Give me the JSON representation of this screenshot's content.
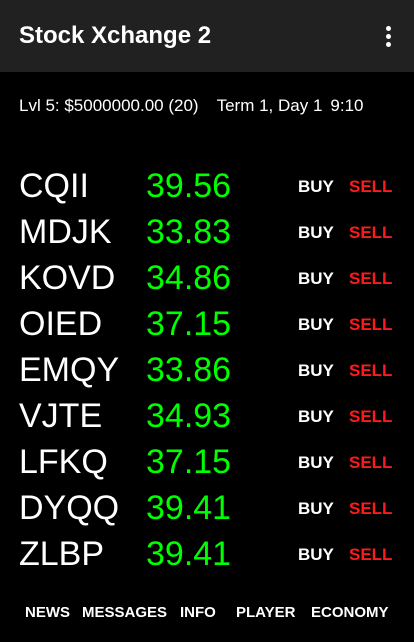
{
  "app_bar": {
    "title": "Stock Xchange 2",
    "menu_icon": "overflow-menu-icon"
  },
  "status": {
    "level_cash": "Lvl 5: $5000000.00 (20)",
    "term_day": "Term 1, Day 1",
    "time": "9:10"
  },
  "colors": {
    "app_bar_bg": "#212121",
    "background": "#000000",
    "price": "#00ff00",
    "sell": "#ff1a1a",
    "text": "#ffffff"
  },
  "stocks": [
    {
      "ticker": "CQII",
      "price": "39.56",
      "buy_label": "BUY",
      "sell_label": "SELL"
    },
    {
      "ticker": "MDJK",
      "price": "33.83",
      "buy_label": "BUY",
      "sell_label": "SELL"
    },
    {
      "ticker": "KOVD",
      "price": "34.86",
      "buy_label": "BUY",
      "sell_label": "SELL"
    },
    {
      "ticker": "OIED",
      "price": "37.15",
      "buy_label": "BUY",
      "sell_label": "SELL"
    },
    {
      "ticker": "EMQY",
      "price": "33.86",
      "buy_label": "BUY",
      "sell_label": "SELL"
    },
    {
      "ticker": "VJTE",
      "price": "34.93",
      "buy_label": "BUY",
      "sell_label": "SELL"
    },
    {
      "ticker": "LFKQ",
      "price": "37.15",
      "buy_label": "BUY",
      "sell_label": "SELL"
    },
    {
      "ticker": "DYQQ",
      "price": "39.41",
      "buy_label": "BUY",
      "sell_label": "SELL"
    },
    {
      "ticker": "ZLBP",
      "price": "39.41",
      "buy_label": "BUY",
      "sell_label": "SELL"
    }
  ],
  "bottom_nav": {
    "news": "NEWS",
    "messages": "MESSAGES",
    "info": "INFO",
    "player": "PLAYER",
    "economy": "ECONOMY"
  }
}
